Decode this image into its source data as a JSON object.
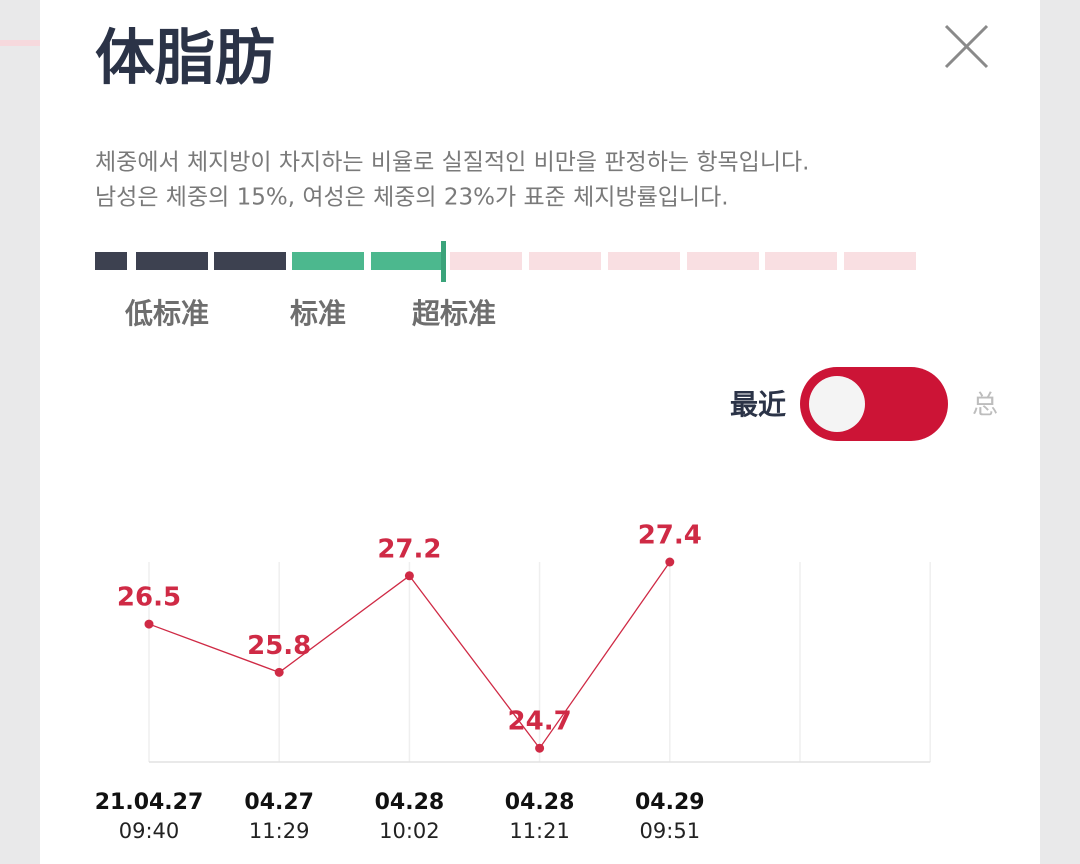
{
  "header": {
    "title": "体脂肪"
  },
  "description": [
    "체중에서 체지방이 차지하는 비율로 실질적인 비만을 판정하는 항목입니다.",
    "남성은 체중의 15%, 여성은 체중의 23%가 표준 체지방률입니다."
  ],
  "levels": [
    "低标准",
    "标准",
    "超标准"
  ],
  "toggle": {
    "left": "最近",
    "right": "总"
  },
  "chart_data": {
    "type": "line",
    "categories": [
      "21.04.27",
      "04.27",
      "04.28",
      "04.28",
      "04.29",
      null,
      null
    ],
    "times": [
      "09:40",
      "11:29",
      "10:02",
      "11:21",
      "09:51",
      null,
      null
    ],
    "values": [
      26.5,
      25.8,
      27.2,
      24.7,
      27.4,
      null,
      null
    ],
    "color": "#cf2a45",
    "ylim": [
      24.5,
      27.4
    ]
  }
}
